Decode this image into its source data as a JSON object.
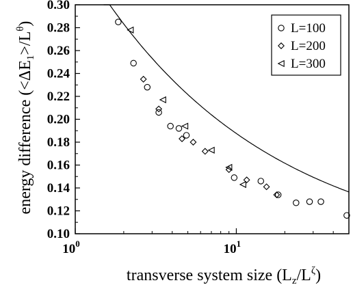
{
  "chart_data": {
    "type": "scatter",
    "title": "",
    "xlabel": "transverse system size (L",
    "xlabel_sub": "z",
    "xlabel_mid": "/L",
    "xlabel_sup": "ζ",
    "xlabel_end": ")",
    "ylabel": "energy difference (<ΔE",
    "ylabel_sub": "1",
    "ylabel_mid": ">/L",
    "ylabel_sup": "θ",
    "ylabel_end": ")",
    "x_scale": "log",
    "xlim": [
      1,
      50
    ],
    "ylim": [
      0.1,
      0.3
    ],
    "x_ticks": [
      1,
      10
    ],
    "x_tick_labels": [
      {
        "base": "10",
        "exp": "0"
      },
      {
        "base": "10",
        "exp": "1"
      }
    ],
    "y_ticks": [
      0.1,
      0.12,
      0.14,
      0.16,
      0.18,
      0.2,
      0.22,
      0.24,
      0.26,
      0.28,
      0.3
    ],
    "y_tick_labels": [
      "0.10",
      "0.12",
      "0.14",
      "0.16",
      "0.18",
      "0.20",
      "0.22",
      "0.24",
      "0.26",
      "0.28",
      "0.30"
    ],
    "grid": false,
    "legend_position": "top-right",
    "series": [
      {
        "name": "L=100",
        "marker": "circle",
        "points": [
          [
            1.85,
            0.285
          ],
          [
            2.3,
            0.249
          ],
          [
            2.8,
            0.228
          ],
          [
            3.3,
            0.206
          ],
          [
            3.9,
            0.194
          ],
          [
            4.4,
            0.192
          ],
          [
            4.9,
            0.186
          ],
          [
            9.7,
            0.149
          ],
          [
            14.2,
            0.146
          ],
          [
            18.2,
            0.134
          ],
          [
            23.5,
            0.127
          ],
          [
            28.5,
            0.128
          ],
          [
            33.5,
            0.128
          ],
          [
            48.5,
            0.116
          ]
        ]
      },
      {
        "name": "L=200",
        "marker": "diamond",
        "points": [
          [
            2.65,
            0.235
          ],
          [
            3.3,
            0.209
          ],
          [
            4.6,
            0.183
          ],
          [
            5.4,
            0.18
          ],
          [
            6.4,
            0.172
          ],
          [
            9.0,
            0.156
          ],
          [
            11.6,
            0.147
          ],
          [
            15.4,
            0.141
          ],
          [
            17.8,
            0.134
          ]
        ]
      },
      {
        "name": "L=300",
        "marker": "triangle-left",
        "points": [
          [
            2.2,
            0.278
          ],
          [
            3.5,
            0.217
          ],
          [
            4.8,
            0.194
          ],
          [
            7.0,
            0.173
          ],
          [
            9.0,
            0.158
          ],
          [
            11.0,
            0.143
          ]
        ]
      }
    ],
    "fit_curve": {
      "form": "y = a + b * x^(-c)",
      "a": 0.078,
      "b": 0.269,
      "c": 0.39
    }
  }
}
